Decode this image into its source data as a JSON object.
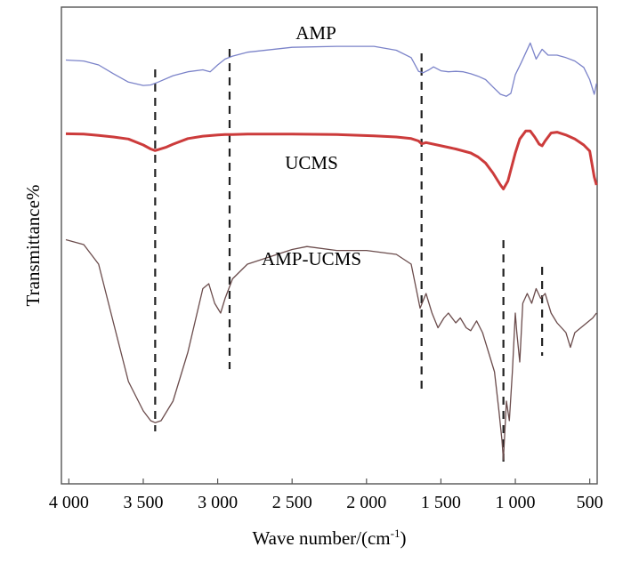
{
  "chart_data": {
    "type": "line",
    "xlabel": "Wave number/(cm",
    "xlabel_sup": "-1",
    "xlabel_tail": ")",
    "ylabel": "Transmittance%",
    "xlim": [
      4050,
      450
    ],
    "x_reversed": true,
    "x_ticks": [
      {
        "value": 4000,
        "label": "4 000"
      },
      {
        "value": 3500,
        "label": "3 500"
      },
      {
        "value": 3000,
        "label": "3 000"
      },
      {
        "value": 2500,
        "label": "2 500"
      },
      {
        "value": 2000,
        "label": "2 000"
      },
      {
        "value": 1500,
        "label": "1 500"
      },
      {
        "value": 1000,
        "label": "1 000"
      },
      {
        "value": 500,
        "label": "500"
      }
    ],
    "y_ticks_shown": false,
    "grid": false,
    "legend": "none",
    "reference_lines_cm1": [
      3420,
      2920,
      1630,
      1080,
      820
    ],
    "series": [
      {
        "name": "AMP",
        "color": "#7b83c9",
        "stroke": "thin",
        "x": [
          4020,
          3900,
          3800,
          3700,
          3600,
          3500,
          3450,
          3400,
          3300,
          3200,
          3100,
          3050,
          3000,
          2950,
          2900,
          2800,
          2500,
          2200,
          1950,
          1800,
          1700,
          1650,
          1620,
          1580,
          1550,
          1500,
          1450,
          1400,
          1350,
          1300,
          1250,
          1200,
          1150,
          1100,
          1060,
          1030,
          1000,
          960,
          900,
          860,
          820,
          780,
          720,
          660,
          600,
          540,
          500,
          470,
          455
        ],
        "y": [
          0.5,
          0.48,
          0.4,
          0.22,
          0.05,
          -0.02,
          -0.01,
          0.05,
          0.18,
          0.26,
          0.3,
          0.26,
          0.4,
          0.52,
          0.58,
          0.66,
          0.76,
          0.78,
          0.78,
          0.7,
          0.55,
          0.27,
          0.24,
          0.3,
          0.36,
          0.28,
          0.26,
          0.27,
          0.26,
          0.22,
          0.17,
          0.1,
          -0.05,
          -0.2,
          -0.24,
          -0.18,
          0.2,
          0.45,
          0.85,
          0.52,
          0.72,
          0.6,
          0.6,
          0.55,
          0.48,
          0.35,
          0.1,
          -0.2,
          0.02
        ]
      },
      {
        "name": "UCMS",
        "color": "#cc3b3b",
        "stroke": "thick",
        "x": [
          4020,
          3900,
          3800,
          3700,
          3600,
          3500,
          3450,
          3420,
          3350,
          3300,
          3200,
          3100,
          3000,
          2950,
          2900,
          2800,
          2500,
          2200,
          1950,
          1800,
          1700,
          1650,
          1630,
          1600,
          1500,
          1400,
          1300,
          1250,
          1200,
          1150,
          1100,
          1080,
          1050,
          1000,
          970,
          930,
          900,
          870,
          840,
          820,
          800,
          760,
          720,
          660,
          600,
          540,
          500,
          470,
          455
        ],
        "y": [
          0.48,
          0.47,
          0.44,
          0.4,
          0.35,
          0.2,
          0.1,
          0.06,
          0.14,
          0.22,
          0.36,
          0.42,
          0.45,
          0.46,
          0.46,
          0.47,
          0.47,
          0.46,
          0.43,
          0.4,
          0.36,
          0.3,
          0.23,
          0.26,
          0.18,
          0.1,
          0.0,
          -0.1,
          -0.25,
          -0.5,
          -0.8,
          -0.9,
          -0.7,
          0.0,
          0.35,
          0.55,
          0.55,
          0.4,
          0.22,
          0.18,
          0.3,
          0.5,
          0.52,
          0.45,
          0.35,
          0.2,
          0.05,
          -0.6,
          -0.8
        ]
      },
      {
        "name": "AMP-UCMS",
        "color": "#6b4c4c",
        "stroke": "thin",
        "x": [
          4020,
          3900,
          3800,
          3700,
          3600,
          3500,
          3450,
          3420,
          3380,
          3300,
          3200,
          3100,
          3060,
          3020,
          2980,
          2950,
          2900,
          2800,
          2500,
          2400,
          2200,
          2000,
          1800,
          1700,
          1660,
          1640,
          1600,
          1560,
          1520,
          1480,
          1450,
          1400,
          1370,
          1330,
          1300,
          1260,
          1220,
          1180,
          1140,
          1110,
          1090,
          1080,
          1060,
          1040,
          1020,
          1000,
          990,
          970,
          950,
          920,
          890,
          860,
          830,
          800,
          760,
          720,
          660,
          630,
          600,
          560,
          520,
          480,
          455
        ],
        "y": [
          0.55,
          0.5,
          0.3,
          -0.3,
          -0.9,
          -1.2,
          -1.3,
          -1.32,
          -1.3,
          -1.1,
          -0.6,
          0.05,
          0.1,
          -0.1,
          -0.2,
          -0.05,
          0.15,
          0.3,
          0.45,
          0.48,
          0.44,
          0.44,
          0.4,
          0.3,
          0.0,
          -0.15,
          0.0,
          -0.2,
          -0.35,
          -0.25,
          -0.2,
          -0.3,
          -0.25,
          -0.35,
          -0.38,
          -0.28,
          -0.4,
          -0.6,
          -0.8,
          -1.2,
          -1.5,
          -1.7,
          -1.1,
          -1.3,
          -0.8,
          -0.2,
          -0.4,
          -0.7,
          -0.1,
          0.0,
          -0.1,
          0.05,
          -0.05,
          0.0,
          -0.2,
          -0.3,
          -0.4,
          -0.55,
          -0.4,
          -0.35,
          -0.3,
          -0.25,
          -0.2
        ]
      }
    ]
  }
}
